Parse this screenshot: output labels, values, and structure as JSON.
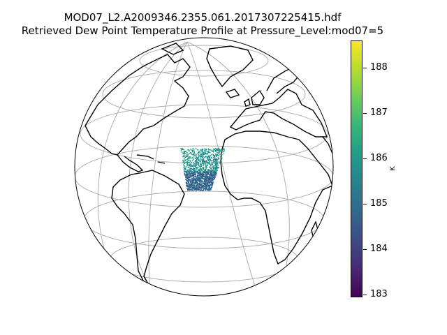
{
  "figure": {
    "title_line1": "MOD07_L2.A2009346.2355.061.2017307225415.hdf",
    "title_line2": "Retrieved Dew Point Temperature Profile at Pressure_Level:mod07=5"
  },
  "map": {
    "projection": "orthographic",
    "gridlines": true,
    "coastlines": true
  },
  "colorbar": {
    "colormap": "viridis",
    "unit_label": "K",
    "min": 182.9,
    "max": 188.6,
    "ticks": [
      "183",
      "184",
      "185",
      "186",
      "187",
      "188"
    ],
    "colors": [
      "#440154",
      "#482878",
      "#3e4989",
      "#31688e",
      "#26828e",
      "#1f9e89",
      "#35b779",
      "#6ece58",
      "#b5de2b",
      "#fde725"
    ]
  },
  "chart_data": {
    "type": "heatmap",
    "title": "MOD07_L2.A2009346.2355.061.2017307225415.hdf\nRetrieved Dew Point Temperature Profile at Pressure_Level:mod07=5",
    "colorbar_label": "K",
    "value_range": [
      182.9,
      188.6
    ],
    "data_region": "scattered swath over the eastern tropical Atlantic off West Africa",
    "dominant_values": [
      184.8,
      185.2,
      185.8,
      186.2
    ]
  }
}
